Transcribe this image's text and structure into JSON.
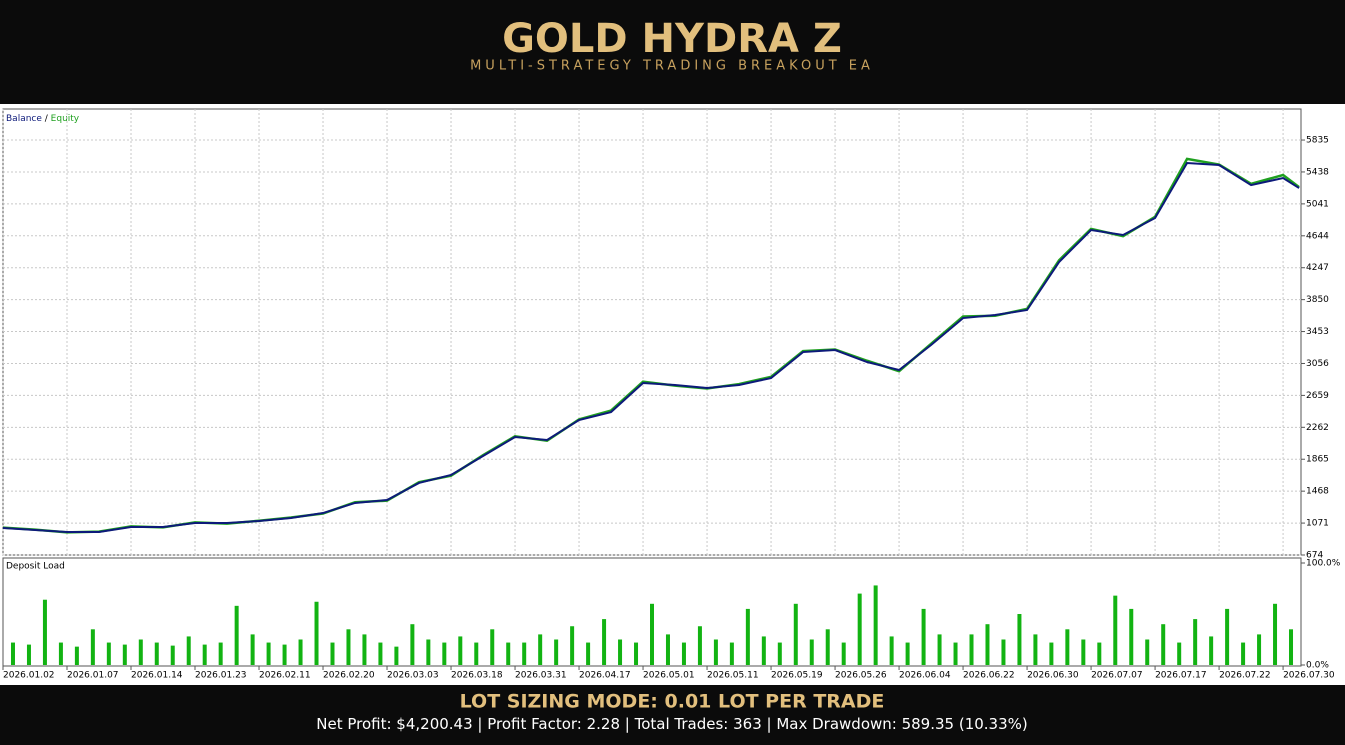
{
  "header": {
    "title": "GOLD HYDRA Z",
    "subtitle": "MULTI-STRATEGY TRADING BREAKOUT EA"
  },
  "chart_data": [
    {
      "type": "line",
      "legend_separator": "/",
      "x": [
        0,
        0.5,
        1,
        1.5,
        2,
        2.5,
        3,
        3.5,
        4,
        4.5,
        5,
        5.5,
        6,
        6.5,
        7,
        7.5,
        8,
        8.5,
        9,
        9.5,
        10,
        10.5,
        11,
        11.5,
        12,
        12.5,
        13,
        13.5,
        14,
        14.5,
        15,
        15.5,
        16,
        16.5,
        17,
        17.5,
        18,
        18.5,
        19,
        19.5,
        20,
        20.25
      ],
      "series": [
        {
          "name": "Balance",
          "color": "#0d1a7a",
          "values": [
            1010,
            985,
            960,
            960,
            1022,
            1022,
            1072,
            1072,
            1097,
            1134,
            1196,
            1321,
            1358,
            1570,
            1669,
            1905,
            2141,
            2104,
            2353,
            2452,
            2813,
            2788,
            2751,
            2788,
            2875,
            3198,
            3223,
            3074,
            2975,
            3286,
            3621,
            3659,
            3721,
            4318,
            4716,
            4654,
            4865,
            5549,
            5524,
            5275,
            5362,
            5238
          ]
        },
        {
          "name": "Equity",
          "color": "#1fa01f",
          "values": [
            1015,
            990,
            955,
            965,
            1030,
            1018,
            1080,
            1065,
            1100,
            1140,
            1190,
            1330,
            1350,
            1580,
            1660,
            1915,
            2150,
            2095,
            2360,
            2470,
            2830,
            2780,
            2745,
            2800,
            2890,
            3210,
            3230,
            3090,
            2960,
            3300,
            3640,
            3650,
            3735,
            4340,
            4730,
            4640,
            4880,
            5600,
            5530,
            5290,
            5400,
            5250
          ]
        }
      ],
      "xlim": [
        0,
        20.28
      ],
      "ylim": [
        674,
        6221
      ],
      "yticks": [
        674,
        1071,
        1468,
        1865,
        2262,
        2659,
        3056,
        3453,
        3850,
        4247,
        4644,
        5041,
        5438,
        5835
      ],
      "grid": true
    },
    {
      "type": "bar",
      "title": "Deposit Load",
      "color": "#12b312",
      "values": [
        22,
        20,
        64,
        22,
        18,
        35,
        22,
        20,
        25,
        22,
        19,
        28,
        20,
        22,
        58,
        30,
        22,
        20,
        25,
        62,
        22,
        35,
        30,
        22,
        18,
        40,
        25,
        22,
        28,
        22,
        35,
        22,
        22,
        30,
        25,
        38,
        22,
        45,
        25,
        22,
        60,
        30,
        22,
        38,
        25,
        22,
        55,
        28,
        22,
        60,
        25,
        35,
        22,
        70,
        78,
        28,
        22,
        55,
        30,
        22,
        30,
        40,
        25,
        50,
        30,
        22,
        35,
        25,
        22,
        68,
        55,
        25,
        40,
        22,
        45,
        28,
        55,
        22,
        30,
        60,
        35
      ],
      "xlim": [
        0,
        20.28
      ],
      "xticks": [
        {
          "value": 0,
          "label": "2026.01.02"
        },
        {
          "value": 1,
          "label": "2026.01.07"
        },
        {
          "value": 2,
          "label": "2026.01.14"
        },
        {
          "value": 3,
          "label": "2026.01.23"
        },
        {
          "value": 4,
          "label": "2026.02.11"
        },
        {
          "value": 5,
          "label": "2026.02.20"
        },
        {
          "value": 6,
          "label": "2026.03.03"
        },
        {
          "value": 7,
          "label": "2026.03.18"
        },
        {
          "value": 8,
          "label": "2026.03.31"
        },
        {
          "value": 9,
          "label": "2026.04.17"
        },
        {
          "value": 10,
          "label": "2026.05.01"
        },
        {
          "value": 11,
          "label": "2026.05.11"
        },
        {
          "value": 12,
          "label": "2026.05.19"
        },
        {
          "value": 13,
          "label": "2026.05.26"
        },
        {
          "value": 14,
          "label": "2026.06.04"
        },
        {
          "value": 15,
          "label": "2026.06.22"
        },
        {
          "value": 16,
          "label": "2026.06.30"
        },
        {
          "value": 17,
          "label": "2026.07.07"
        },
        {
          "value": 18,
          "label": "2026.07.17"
        },
        {
          "value": 19,
          "label": "2026.07.22"
        },
        {
          "value": 20,
          "label": "2026.07.30"
        }
      ],
      "ylim": [
        0,
        100
      ],
      "yticks": [
        {
          "value": 100,
          "label": "100.0%"
        },
        {
          "value": 0,
          "label": "0.0%"
        }
      ]
    }
  ],
  "footer": {
    "title": "LOT SIZING MODE: 0.01 LOT PER TRADE",
    "stats_separator": "|",
    "stats": [
      "Net Profit: $4,200.43",
      "Profit Factor: 2.28",
      "Total Trades: 363",
      "Max Drawdown: 589.35 (10.33%)"
    ]
  }
}
